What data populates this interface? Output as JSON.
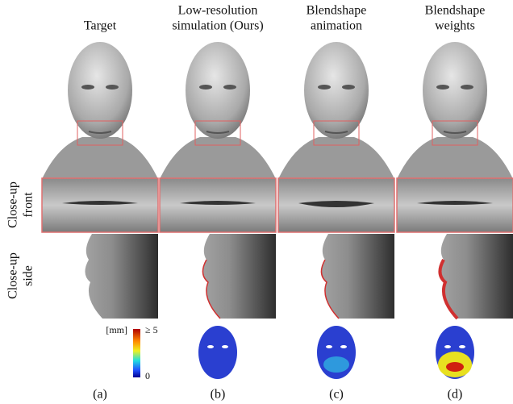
{
  "columns": [
    {
      "header": [
        "Target"
      ],
      "label": "(a)"
    },
    {
      "header": [
        "Low-resolution",
        "simulation (Ours)"
      ],
      "label": "(b)"
    },
    {
      "header": [
        "Blendshape",
        "animation"
      ],
      "label": "(c)"
    },
    {
      "header": [
        "Blendshape",
        "weights"
      ],
      "label": "(d)"
    }
  ],
  "row_labels": [
    [
      "Close-up",
      "front"
    ],
    [
      "Close-up",
      "side"
    ]
  ],
  "colorbar": {
    "unit": "[mm]",
    "max_label": "≥ 5",
    "min_label": "0"
  }
}
